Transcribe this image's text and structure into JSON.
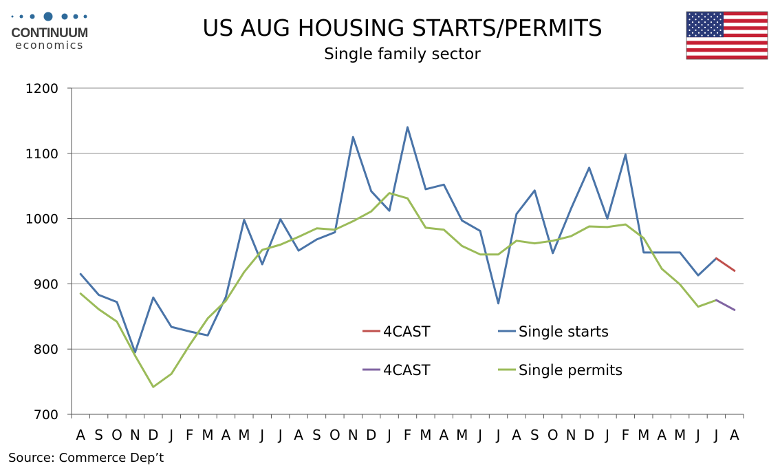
{
  "brand": {
    "name": "CONTINUUM",
    "tagline": "economics",
    "dot_color": "#2e6a9a"
  },
  "flag": {
    "icon": "us-flag-icon"
  },
  "source": "Source: Commerce Dep’t",
  "chart_data": {
    "type": "line",
    "title": "US AUG HOUSING STARTS/PERMITS",
    "subtitle": "Single family sector",
    "xlabel": "",
    "ylabel": "",
    "ylim": [
      700,
      1200
    ],
    "yticks": [
      700,
      800,
      900,
      1000,
      1100,
      1200
    ],
    "grid": true,
    "legend_placement": "center-bottom",
    "categories": [
      "A",
      "S",
      "O",
      "N",
      "D",
      "J",
      "F",
      "M",
      "A",
      "M",
      "J",
      "J",
      "A",
      "S",
      "O",
      "N",
      "D",
      "J",
      "F",
      "M",
      "A",
      "M",
      "J",
      "J",
      "A",
      "S",
      "O",
      "N",
      "D",
      "J",
      "F",
      "M",
      "A",
      "M",
      "J",
      "J",
      "A"
    ],
    "series": [
      {
        "name": "Single starts",
        "color": "#4a74a8",
        "values": [
          915,
          883,
          872,
          795,
          879,
          834,
          827,
          821,
          880,
          998,
          930,
          999,
          951,
          968,
          979,
          1125,
          1042,
          1012,
          1140,
          1045,
          1052,
          997,
          981,
          870,
          1007,
          1043,
          947,
          1015,
          1078,
          1000,
          1098,
          948,
          948,
          948,
          913,
          939,
          null
        ]
      },
      {
        "name": "4CAST",
        "color": "#c0504d",
        "values": [
          null,
          null,
          null,
          null,
          null,
          null,
          null,
          null,
          null,
          null,
          null,
          null,
          null,
          null,
          null,
          null,
          null,
          null,
          null,
          null,
          null,
          null,
          null,
          null,
          null,
          null,
          null,
          null,
          null,
          null,
          null,
          null,
          null,
          null,
          null,
          939,
          920
        ]
      },
      {
        "name": "Single permits",
        "color": "#9bbb59",
        "values": [
          885,
          861,
          842,
          790,
          742,
          762,
          806,
          847,
          874,
          918,
          952,
          960,
          972,
          985,
          983,
          996,
          1011,
          1039,
          1031,
          986,
          983,
          958,
          945,
          945,
          966,
          962,
          966,
          973,
          988,
          987,
          991,
          970,
          923,
          899,
          865,
          875,
          null
        ]
      },
      {
        "name": "4CAST",
        "color": "#8064a2",
        "values": [
          null,
          null,
          null,
          null,
          null,
          null,
          null,
          null,
          null,
          null,
          null,
          null,
          null,
          null,
          null,
          null,
          null,
          null,
          null,
          null,
          null,
          null,
          null,
          null,
          null,
          null,
          null,
          null,
          null,
          null,
          null,
          null,
          null,
          null,
          null,
          875,
          860
        ]
      }
    ],
    "legend": [
      {
        "series": 1,
        "label": "4CAST"
      },
      {
        "series": 0,
        "label": "Single starts"
      },
      {
        "series": 3,
        "label": "4CAST"
      },
      {
        "series": 2,
        "label": "Single permits"
      }
    ]
  }
}
